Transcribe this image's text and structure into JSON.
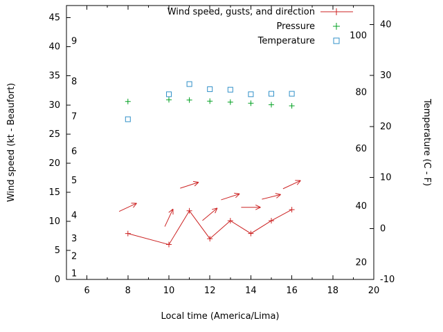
{
  "legend": {
    "position": "top-right-inside",
    "items": [
      {
        "label": "Wind speed, gusts, and direction",
        "marker": "line-plus",
        "color": "#cc2222"
      },
      {
        "label": "Pressure",
        "marker": "plus",
        "color": "#00a020"
      },
      {
        "label": "Temperature",
        "marker": "open-square",
        "color": "#3090c8"
      }
    ]
  },
  "chart_data": {
    "type": "line",
    "title": "Wind speed, gusts, and direction",
    "xlabel": "Local time (America/Lima)",
    "ylabel_left": "Wind speed (kt - Beaufort)",
    "ylabel_right": "Temperature (C - F)",
    "grid": false,
    "axes": {
      "x": {
        "min": 5,
        "max": 20,
        "major": [
          6,
          8,
          10,
          12,
          14,
          16,
          18,
          20
        ],
        "minor": [
          7,
          9,
          11,
          13,
          15,
          17,
          19
        ]
      },
      "y_left": {
        "min": 0,
        "max": 47.1,
        "major": [
          0,
          5,
          10,
          15,
          20,
          25,
          30,
          35,
          40,
          45
        ],
        "beaufort_labels": [
          {
            "text": "1",
            "kt": 1
          },
          {
            "text": "2",
            "kt": 4
          },
          {
            "text": "3",
            "kt": 7
          },
          {
            "text": "4",
            "kt": 11
          },
          {
            "text": "5",
            "kt": 17
          },
          {
            "text": "6",
            "kt": 22
          },
          {
            "text": "7",
            "kt": 28
          },
          {
            "text": "8",
            "kt": 34
          },
          {
            "text": "9",
            "kt": 41
          }
        ]
      },
      "y_right": {
        "min": -10,
        "max": 43.7,
        "major": [
          -10,
          0,
          10,
          20,
          30,
          40
        ],
        "fahrenheit_labels": [
          {
            "text": "20",
            "c": -6.7
          },
          {
            "text": "40",
            "c": 4.4
          },
          {
            "text": "60",
            "c": 15.6
          },
          {
            "text": "80",
            "c": 26.7
          },
          {
            "text": "100",
            "c": 37.8
          }
        ]
      }
    },
    "series": [
      {
        "name": "wind-speed",
        "legend": "Wind speed, gusts, and direction",
        "axis": "left",
        "color": "#cc2222",
        "marker": "plus",
        "line": true,
        "points": [
          [
            8,
            7.9
          ],
          [
            10,
            6.0
          ],
          [
            11,
            11.8
          ],
          [
            12,
            7.0
          ],
          [
            13,
            10.1
          ],
          [
            14,
            7.9
          ],
          [
            15,
            10.1
          ],
          [
            16,
            12.0
          ]
        ]
      },
      {
        "name": "wind-gust-direction",
        "legend": "Wind speed, gusts, and direction",
        "axis": "left",
        "color": "#cc2222",
        "arrows": [
          {
            "x": 8,
            "kt": 12.4,
            "angle_deg": 25
          },
          {
            "x": 10,
            "kt": 10.6,
            "angle_deg": 65
          },
          {
            "x": 11,
            "kt": 16.2,
            "angle_deg": 18
          },
          {
            "x": 12,
            "kt": 11.2,
            "angle_deg": 40
          },
          {
            "x": 13,
            "kt": 14.2,
            "angle_deg": 18
          },
          {
            "x": 14,
            "kt": 12.4,
            "angle_deg": 0
          },
          {
            "x": 15,
            "kt": 14.2,
            "angle_deg": 14
          },
          {
            "x": 16,
            "kt": 16.3,
            "angle_deg": 25
          }
        ]
      },
      {
        "name": "pressure",
        "legend": "Pressure",
        "axis": "left",
        "color": "#00a020",
        "marker": "plus",
        "line": false,
        "points": [
          [
            8,
            30.6
          ],
          [
            10,
            30.9
          ],
          [
            11,
            30.85
          ],
          [
            12,
            30.65
          ],
          [
            13,
            30.5
          ],
          [
            14,
            30.3
          ],
          [
            15,
            30.05
          ],
          [
            16,
            29.85
          ]
        ]
      },
      {
        "name": "temperature",
        "legend": "Temperature",
        "axis": "right",
        "color": "#3090c8",
        "marker": "square",
        "line": false,
        "points": [
          [
            8,
            21.4
          ],
          [
            10,
            26.3
          ],
          [
            11,
            28.3
          ],
          [
            12,
            27.3
          ],
          [
            13,
            27.2
          ],
          [
            14,
            26.3
          ],
          [
            15,
            26.4
          ],
          [
            16,
            26.4
          ]
        ]
      }
    ]
  }
}
